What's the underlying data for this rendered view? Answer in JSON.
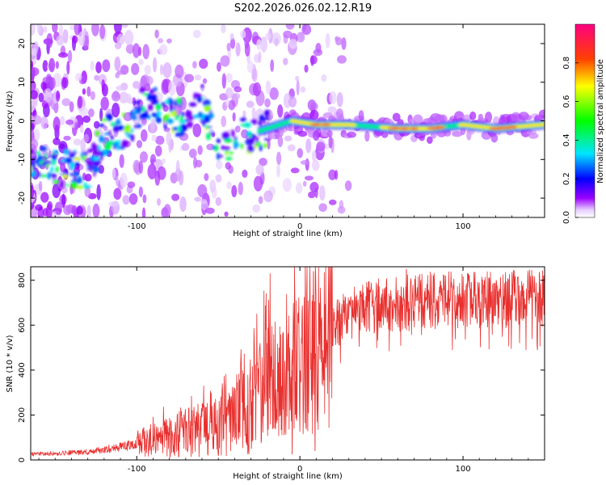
{
  "title": "S202.2026.026.02.12.R19",
  "chart_data": [
    {
      "type": "heatmap",
      "xlabel": "Height of straight line (km)",
      "ylabel": "Frequency (Hz)",
      "xlim": [
        -165,
        150
      ],
      "ylim": [
        -25,
        25
      ],
      "xticks": [
        -100,
        0,
        100
      ],
      "yticks": [
        -20,
        -10,
        0,
        10,
        20
      ],
      "colorbar": {
        "label": "Normalized spectral amplitude",
        "range": [
          0,
          1
        ],
        "ticks": [
          "0.0",
          "0.2",
          "0.4",
          "0.6",
          "0.8"
        ]
      },
      "ridge": [
        {
          "x": -160,
          "y": -11
        },
        {
          "x": -145,
          "y": -12
        },
        {
          "x": -130,
          "y": -13
        },
        {
          "x": -120,
          "y": -4
        },
        {
          "x": -105,
          "y": -2
        },
        {
          "x": -95,
          "y": 5
        },
        {
          "x": -85,
          "y": 3
        },
        {
          "x": -70,
          "y": 0
        },
        {
          "x": -60,
          "y": 5
        },
        {
          "x": -50,
          "y": -7
        },
        {
          "x": -35,
          "y": -4
        },
        {
          "x": -20,
          "y": -2
        },
        {
          "x": -5,
          "y": 0
        },
        {
          "x": 10,
          "y": -1
        },
        {
          "x": 30,
          "y": -1
        },
        {
          "x": 60,
          "y": -2
        },
        {
          "x": 80,
          "y": -2
        },
        {
          "x": 100,
          "y": -1
        },
        {
          "x": 120,
          "y": -2
        },
        {
          "x": 148,
          "y": -1
        }
      ]
    },
    {
      "type": "line",
      "xlabel": "Height of straight line (km)",
      "ylabel": "SNR (10 * v/v)",
      "xlim": [
        -165,
        150
      ],
      "ylim": [
        0,
        860
      ],
      "xticks": [
        -100,
        0,
        100
      ],
      "yticks": [
        0,
        200,
        400,
        600,
        800
      ],
      "color": "#e8302e",
      "trend": [
        {
          "x": -165,
          "y": 25
        },
        {
          "x": -130,
          "y": 35
        },
        {
          "x": -100,
          "y": 70
        },
        {
          "x": -70,
          "y": 120
        },
        {
          "x": -45,
          "y": 160
        },
        {
          "x": -30,
          "y": 260
        },
        {
          "x": -15,
          "y": 360
        },
        {
          "x": 0,
          "y": 420
        },
        {
          "x": 10,
          "y": 480
        },
        {
          "x": 20,
          "y": 600
        },
        {
          "x": 40,
          "y": 680
        },
        {
          "x": 80,
          "y": 710
        },
        {
          "x": 150,
          "y": 720
        }
      ],
      "notable_points": [
        {
          "x": 8,
          "y": 840
        },
        {
          "x": 9,
          "y": 40
        },
        {
          "x": -5,
          "y": 25
        },
        {
          "x": -30,
          "y": 50
        },
        {
          "x": 65,
          "y": 850
        }
      ]
    }
  ]
}
